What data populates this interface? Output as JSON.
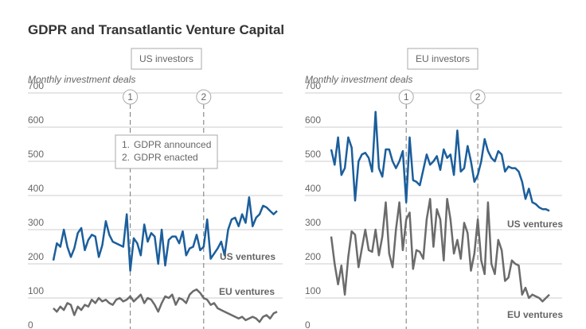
{
  "title": "GDPR and Transatlantic Venture Capital",
  "legend_notes": [
    "GDPR announced",
    "GDPR enacted"
  ],
  "chart_data": [
    {
      "type": "line",
      "title": "US investors",
      "y_label": "Monthly investment deals",
      "ylim": [
        0,
        700
      ],
      "yticks": [
        0,
        100,
        200,
        300,
        400,
        500,
        600,
        700
      ],
      "grid": true,
      "events": [
        {
          "label": "1",
          "index": 22
        },
        {
          "label": "2",
          "index": 43
        }
      ],
      "series": [
        {
          "name": "US ventures",
          "color": "#1b5e9c",
          "values": [
            210,
            260,
            250,
            300,
            250,
            220,
            245,
            290,
            305,
            240,
            270,
            285,
            280,
            220,
            255,
            325,
            285,
            265,
            260,
            255,
            250,
            345,
            180,
            275,
            260,
            225,
            315,
            265,
            290,
            280,
            200,
            300,
            195,
            270,
            280,
            280,
            260,
            295,
            225,
            245,
            250,
            285,
            240,
            250,
            330,
            215,
            230,
            245,
            265,
            225,
            300,
            330,
            335,
            310,
            345,
            320,
            395,
            310,
            335,
            345,
            370,
            365,
            355,
            345,
            355
          ]
        },
        {
          "name": "EU ventures",
          "color": "#6b6b6b",
          "values": [
            70,
            60,
            75,
            65,
            85,
            80,
            50,
            75,
            65,
            80,
            75,
            95,
            85,
            100,
            90,
            95,
            85,
            80,
            95,
            100,
            90,
            95,
            105,
            90,
            100,
            110,
            85,
            100,
            95,
            80,
            60,
            85,
            105,
            100,
            110,
            80,
            100,
            95,
            85,
            110,
            120,
            125,
            115,
            100,
            95,
            80,
            85,
            70,
            65,
            60,
            55,
            50,
            45,
            40,
            45,
            35,
            40,
            45,
            40,
            30,
            45,
            50,
            40,
            55,
            60
          ]
        }
      ]
    },
    {
      "type": "line",
      "title": "EU investors",
      "y_label": "Monthly investment deals",
      "ylim": [
        0,
        700
      ],
      "yticks": [
        0,
        100,
        200,
        300,
        400,
        500,
        600,
        700
      ],
      "grid": true,
      "events": [
        {
          "label": "1",
          "index": 22
        },
        {
          "label": "2",
          "index": 43
        }
      ],
      "series": [
        {
          "name": "US ventures",
          "color": "#1b5e9c",
          "values": [
            535,
            490,
            570,
            460,
            480,
            570,
            540,
            385,
            500,
            520,
            525,
            510,
            470,
            645,
            480,
            455,
            535,
            535,
            500,
            480,
            500,
            530,
            380,
            570,
            445,
            440,
            430,
            475,
            520,
            490,
            500,
            515,
            475,
            535,
            510,
            520,
            460,
            590,
            470,
            480,
            545,
            500,
            440,
            460,
            500,
            565,
            530,
            510,
            500,
            530,
            520,
            470,
            485,
            480,
            480,
            470,
            440,
            390,
            420,
            380,
            375,
            365,
            360,
            360,
            355
          ]
        },
        {
          "name": "EU ventures",
          "color": "#6b6b6b",
          "values": [
            280,
            200,
            140,
            195,
            110,
            220,
            295,
            285,
            190,
            245,
            300,
            240,
            235,
            300,
            225,
            280,
            380,
            230,
            190,
            300,
            380,
            240,
            330,
            350,
            185,
            240,
            235,
            215,
            330,
            390,
            250,
            360,
            330,
            210,
            390,
            330,
            230,
            270,
            215,
            320,
            290,
            180,
            230,
            330,
            210,
            170,
            380,
            200,
            170,
            270,
            240,
            150,
            160,
            210,
            200,
            195,
            110,
            130,
            100,
            110,
            105,
            100,
            90,
            100,
            110
          ]
        }
      ]
    }
  ]
}
